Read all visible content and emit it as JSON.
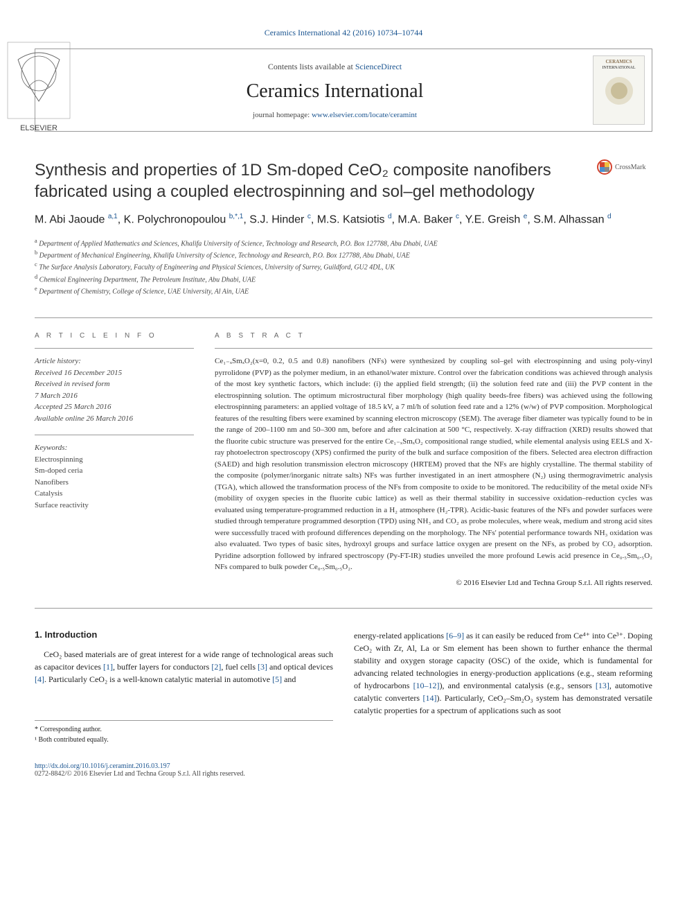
{
  "header": {
    "top_link": "Ceramics International 42 (2016) 10734–10744",
    "contents_prefix": "Contents lists available at ",
    "contents_link": "ScienceDirect",
    "journal_title": "Ceramics International",
    "homepage_prefix": "journal homepage: ",
    "homepage_link": "www.elsevier.com/locate/ceramint",
    "elsevier_text": "ELSEVIER",
    "thumb_title": "CERAMICS",
    "thumb_sub": "INTERNATIONAL"
  },
  "article": {
    "title": "Synthesis and properties of 1D Sm-doped CeO₂ composite nanofibers fabricated using a coupled electrospinning and sol–gel methodology",
    "crossmark": "CrossMark",
    "authors_html": "M. Abi Jaoude <sup>a,1</sup>, K. Polychronopoulou <sup>b,*,1</sup>, S.J. Hinder <sup>c</sup>, M.S. Katsiotis <sup>d</sup>, M.A. Baker <sup>c</sup>, Y.E. Greish <sup>e</sup>, S.M. Alhassan <sup>d</sup>",
    "affiliations": [
      {
        "sup": "a",
        "text": "Department of Applied Mathematics and Sciences, Khalifa University of Science, Technology and Research, P.O. Box 127788, Abu Dhabi, UAE"
      },
      {
        "sup": "b",
        "text": "Department of Mechanical Engineering, Khalifa University of Science, Technology and Research, P.O. Box 127788, Abu Dhabi, UAE"
      },
      {
        "sup": "c",
        "text": "The Surface Analysis Laboratory, Faculty of Engineering and Physical Sciences, University of Surrey, Guildford, GU2 4DL, UK"
      },
      {
        "sup": "d",
        "text": "Chemical Engineering Department, The Petroleum Institute, Abu Dhabi, UAE"
      },
      {
        "sup": "e",
        "text": "Department of Chemistry, College of Science, UAE University, Al Ain, UAE"
      }
    ]
  },
  "info": {
    "heading": "A R T I C L E  I N F O",
    "history_label": "Article history:",
    "history": [
      "Received 16 December 2015",
      "Received in revised form",
      "7 March 2016",
      "Accepted 25 March 2016",
      "Available online 26 March 2016"
    ],
    "keywords_label": "Keywords:",
    "keywords": [
      "Electrospinning",
      "Sm-doped ceria",
      "Nanofibers",
      "Catalysis",
      "Surface reactivity"
    ]
  },
  "abstract": {
    "heading": "A B S T R A C T",
    "text": "Ce₁₋ₓSmₓO₂(x=0, 0.2, 0.5 and 0.8) nanofibers (NFs) were synthesized by coupling sol–gel with electrospinning and using poly-vinyl pyrrolidone (PVP) as the polymer medium, in an ethanol/water mixture. Control over the fabrication conditions was achieved through analysis of the most key synthetic factors, which include: (i) the applied field strength; (ii) the solution feed rate and (iii) the PVP content in the electrospinning solution. The optimum microstructural fiber morphology (high quality beeds-free fibers) was achieved using the following electrospinning parameters: an applied voltage of 18.5 kV, a 7 ml/h of solution feed rate and a 12% (w/w) of PVP composition. Morphological features of the resulting fibers were examined by scanning electron microscopy (SEM). The average fiber diameter was typically found to be in the range of 200–1100 nm and 50–300 nm, before and after calcination at 500 °C, respectively. X-ray diffraction (XRD) results showed that the fluorite cubic structure was preserved for the entire Ce₁₋ₓSmₓO₂ compositional range studied, while elemental analysis using EELS and X-ray photoelectron spectroscopy (XPS) confirmed the purity of the bulk and surface composition of the fibers. Selected area electron diffraction (SAED) and high resolution transmission electron microscopy (HRTEM) proved that the NFs are highly crystalline. The thermal stability of the composite (polymer/inorganic nitrate salts) NFs was further investigated in an inert atmosphere (N₂) using thermogravimetric analysis (TGA), which allowed the transformation process of the NFs from composite to oxide to be monitored. The reducibility of the metal oxide NFs (mobility of oxygen species in the fluorite cubic lattice) as well as their thermal stability in successive oxidation–reduction cycles was evaluated using temperature-programmed reduction in a H₂ atmosphere (H₂-TPR). Acidic-basic features of the NFs and powder surfaces were studied through temperature programmed desorption (TPD) using NH₃ and CO₂ as probe molecules, where weak, medium and strong acid sites were successfully traced with profound differences depending on the morphology. The NFs' potential performance towards NH₃ oxidation was also evaluated. Two types of basic sites, hydroxyl groups and surface lattice oxygen are present on the NFs, as probed by CO₂ adsorption. Pyridine adsorption followed by infrared spectroscopy (Py-FT-IR) studies unveiled the more profound Lewis acid presence in Ce₀.₅Sm₀.₅O₂ NFs compared to bulk powder Ce₀.₅Sm₀.₅O₂.",
    "copyright": "© 2016 Elsevier Ltd and Techna Group S.r.l. All rights reserved."
  },
  "intro": {
    "heading": "1.  Introduction",
    "col1": "CeO₂ based materials are of great interest for a wide range of technological areas such as capacitor devices [1], buffer layers for conductors [2], fuel cells [3] and optical devices [4]. Particularly CeO₂ is a well-known catalytic material in automotive [5] and",
    "col2": "energy-related applications [6–9] as it can easily be reduced from Ce⁴⁺ into Ce³⁺. Doping CeO₂ with Zr, Al, La or Sm element has been shown to further enhance the thermal stability and oxygen storage capacity (OSC) of the oxide, which is fundamental for advancing related technologies in energy-production applications (e.g., steam reforming of hydrocarbons [10–12]), and environmental catalysis (e.g., sensors [13], automotive catalytic converters [14]). Particularly, CeO₂–Sm₂O₃ system has demonstrated versatile catalytic properties for a spectrum of applications such as soot"
  },
  "footer": {
    "corresponding": "* Corresponding author.",
    "equal": "¹ Both contributed equally.",
    "doi": "http://dx.doi.org/10.1016/j.ceramint.2016.03.197",
    "issn_copyright": "0272-8842/© 2016 Elsevier Ltd and Techna Group S.r.l. All rights reserved."
  },
  "colors": {
    "link": "#1a5490",
    "text": "#333",
    "border": "#999"
  }
}
